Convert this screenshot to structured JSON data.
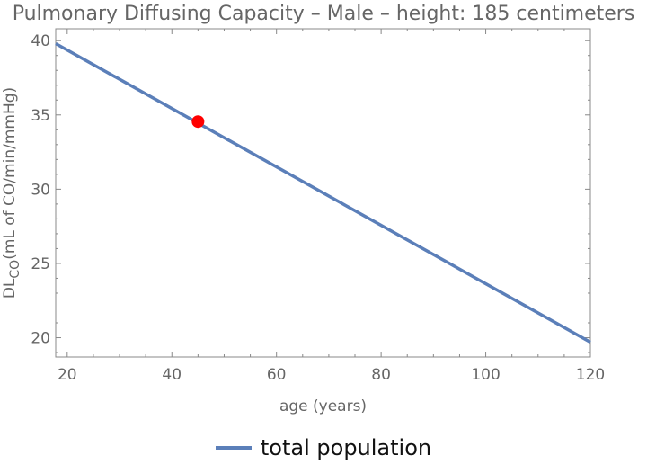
{
  "chart_data": {
    "type": "line",
    "title": "Pulmonary Diffusing Capacity – Male – height: 185 centimeters",
    "xlabel": "age (years)",
    "ylabel_main": "DL",
    "ylabel_sub": "CO",
    "ylabel_rest": "(mL of CO/min/mmHg)",
    "xlim": [
      17.8,
      120
    ],
    "ylim": [
      18.7,
      40.8
    ],
    "xticks": [
      20,
      40,
      60,
      80,
      100,
      120
    ],
    "yticks": [
      20,
      25,
      30,
      35,
      40
    ],
    "grid": false,
    "legend_position": "bottom",
    "series": [
      {
        "name": "total population",
        "color": "#5b7fb9",
        "x": [
          17.8,
          120
        ],
        "y": [
          39.8,
          19.7
        ]
      }
    ],
    "highlight_point": {
      "x": 45,
      "y": 34.55,
      "color": "#ff0000"
    }
  }
}
